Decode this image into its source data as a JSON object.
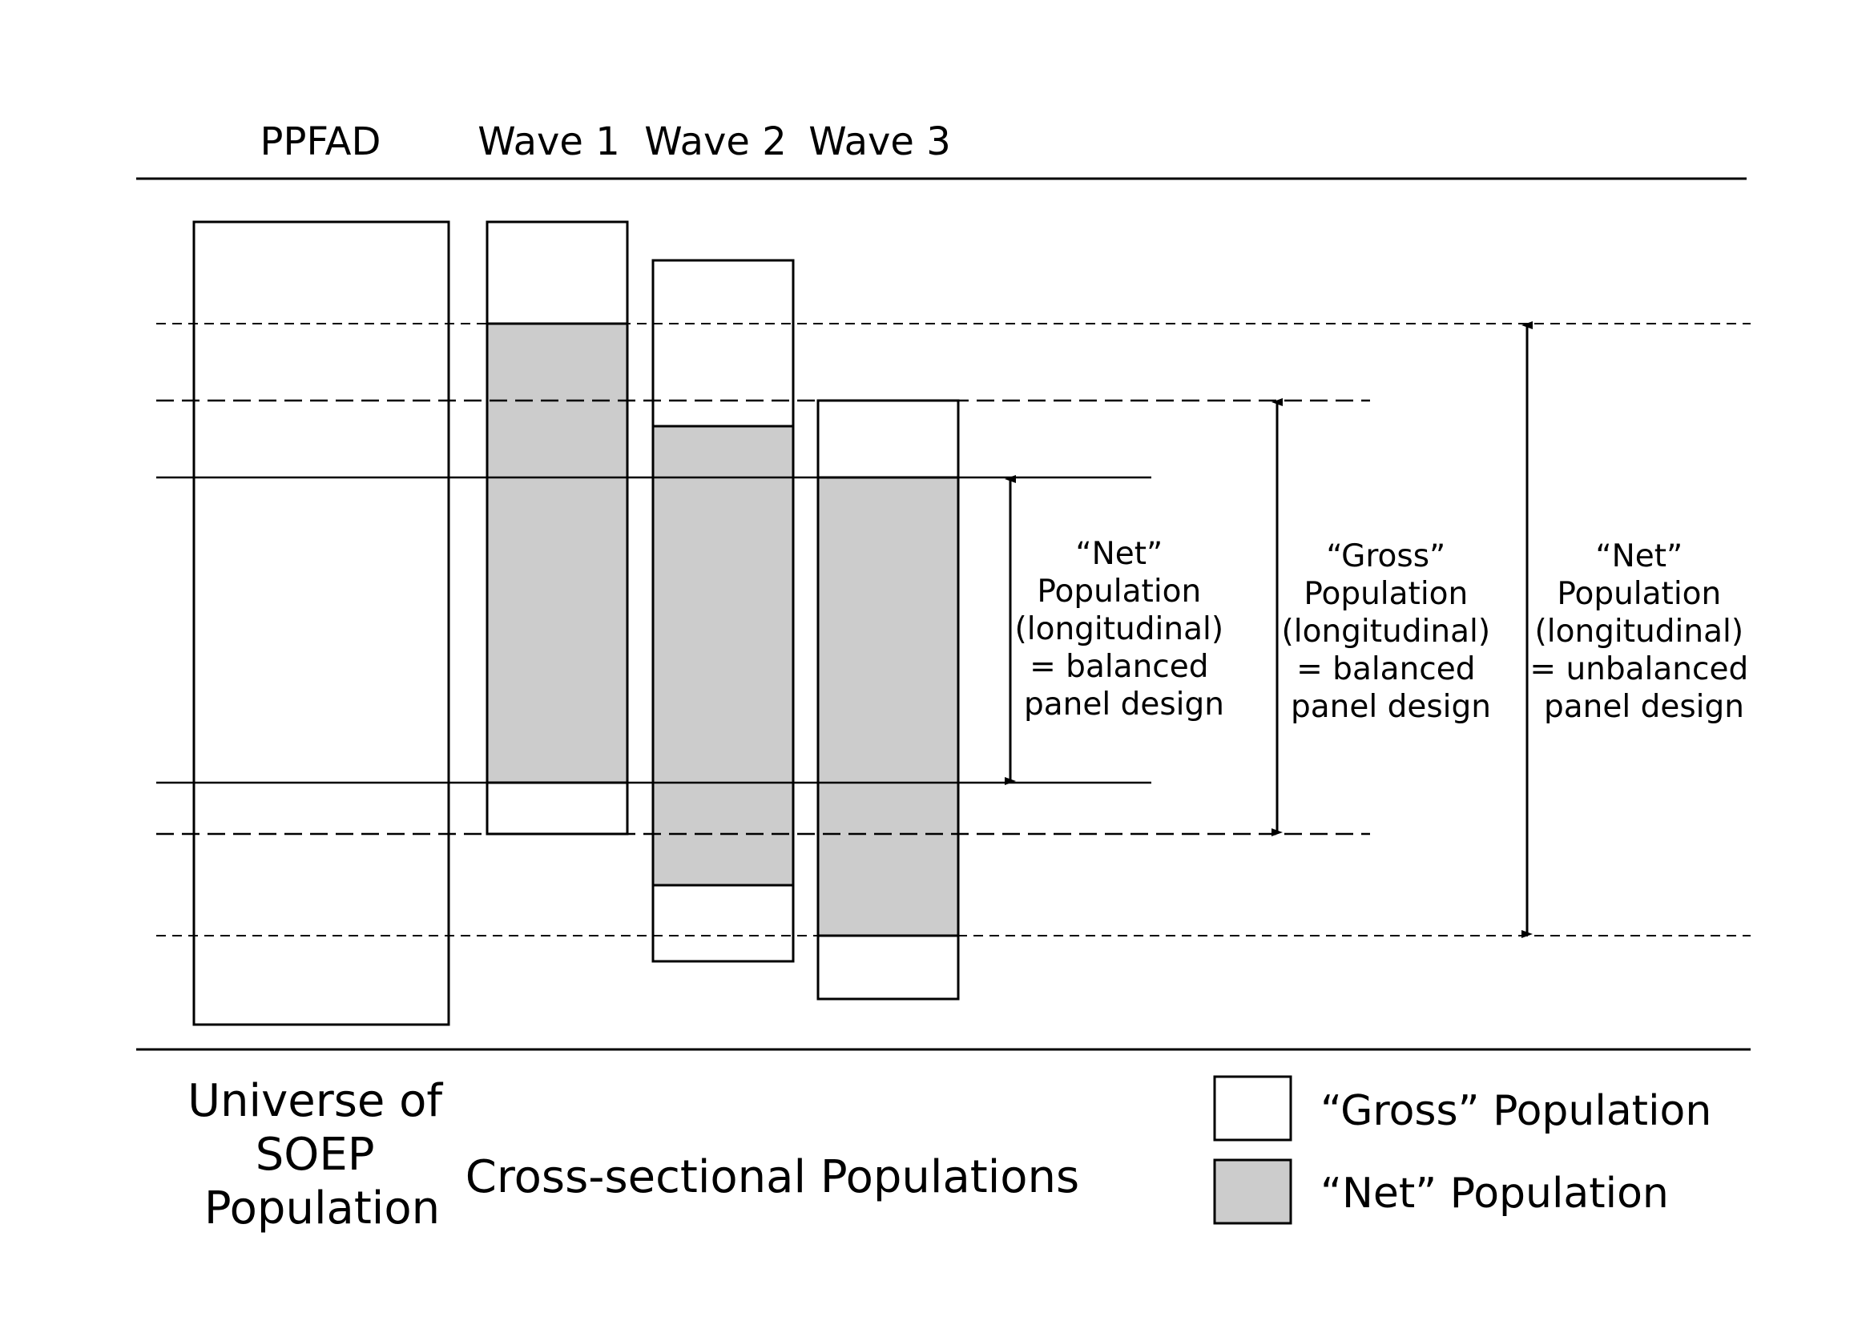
{
  "header": {
    "ppfad": "PPFAD",
    "wave1": "Wave 1",
    "wave2": "Wave 2",
    "wave3": "Wave 3"
  },
  "captions": {
    "universe": [
      "Universe of",
      "SOEP",
      "Population"
    ],
    "cross_sectional": "Cross-sectional Populations"
  },
  "annotations": {
    "net_balanced": [
      "“Net”",
      "Population",
      "(longitudinal)",
      "= balanced",
      "panel design"
    ],
    "gross_balanced": [
      "“Gross”",
      "Population",
      "(longitudinal)",
      "= balanced",
      "panel design"
    ],
    "net_unbalanced": [
      "“Net”",
      "Population",
      "(longitudinal)",
      "= unbalanced",
      "panel design"
    ]
  },
  "legend": {
    "gross": "“Gross” Population",
    "net": "“Net” Population"
  },
  "colors": {
    "net_fill": "#cccccc",
    "gross_fill": "#ffffff",
    "stroke": "#000000"
  }
}
